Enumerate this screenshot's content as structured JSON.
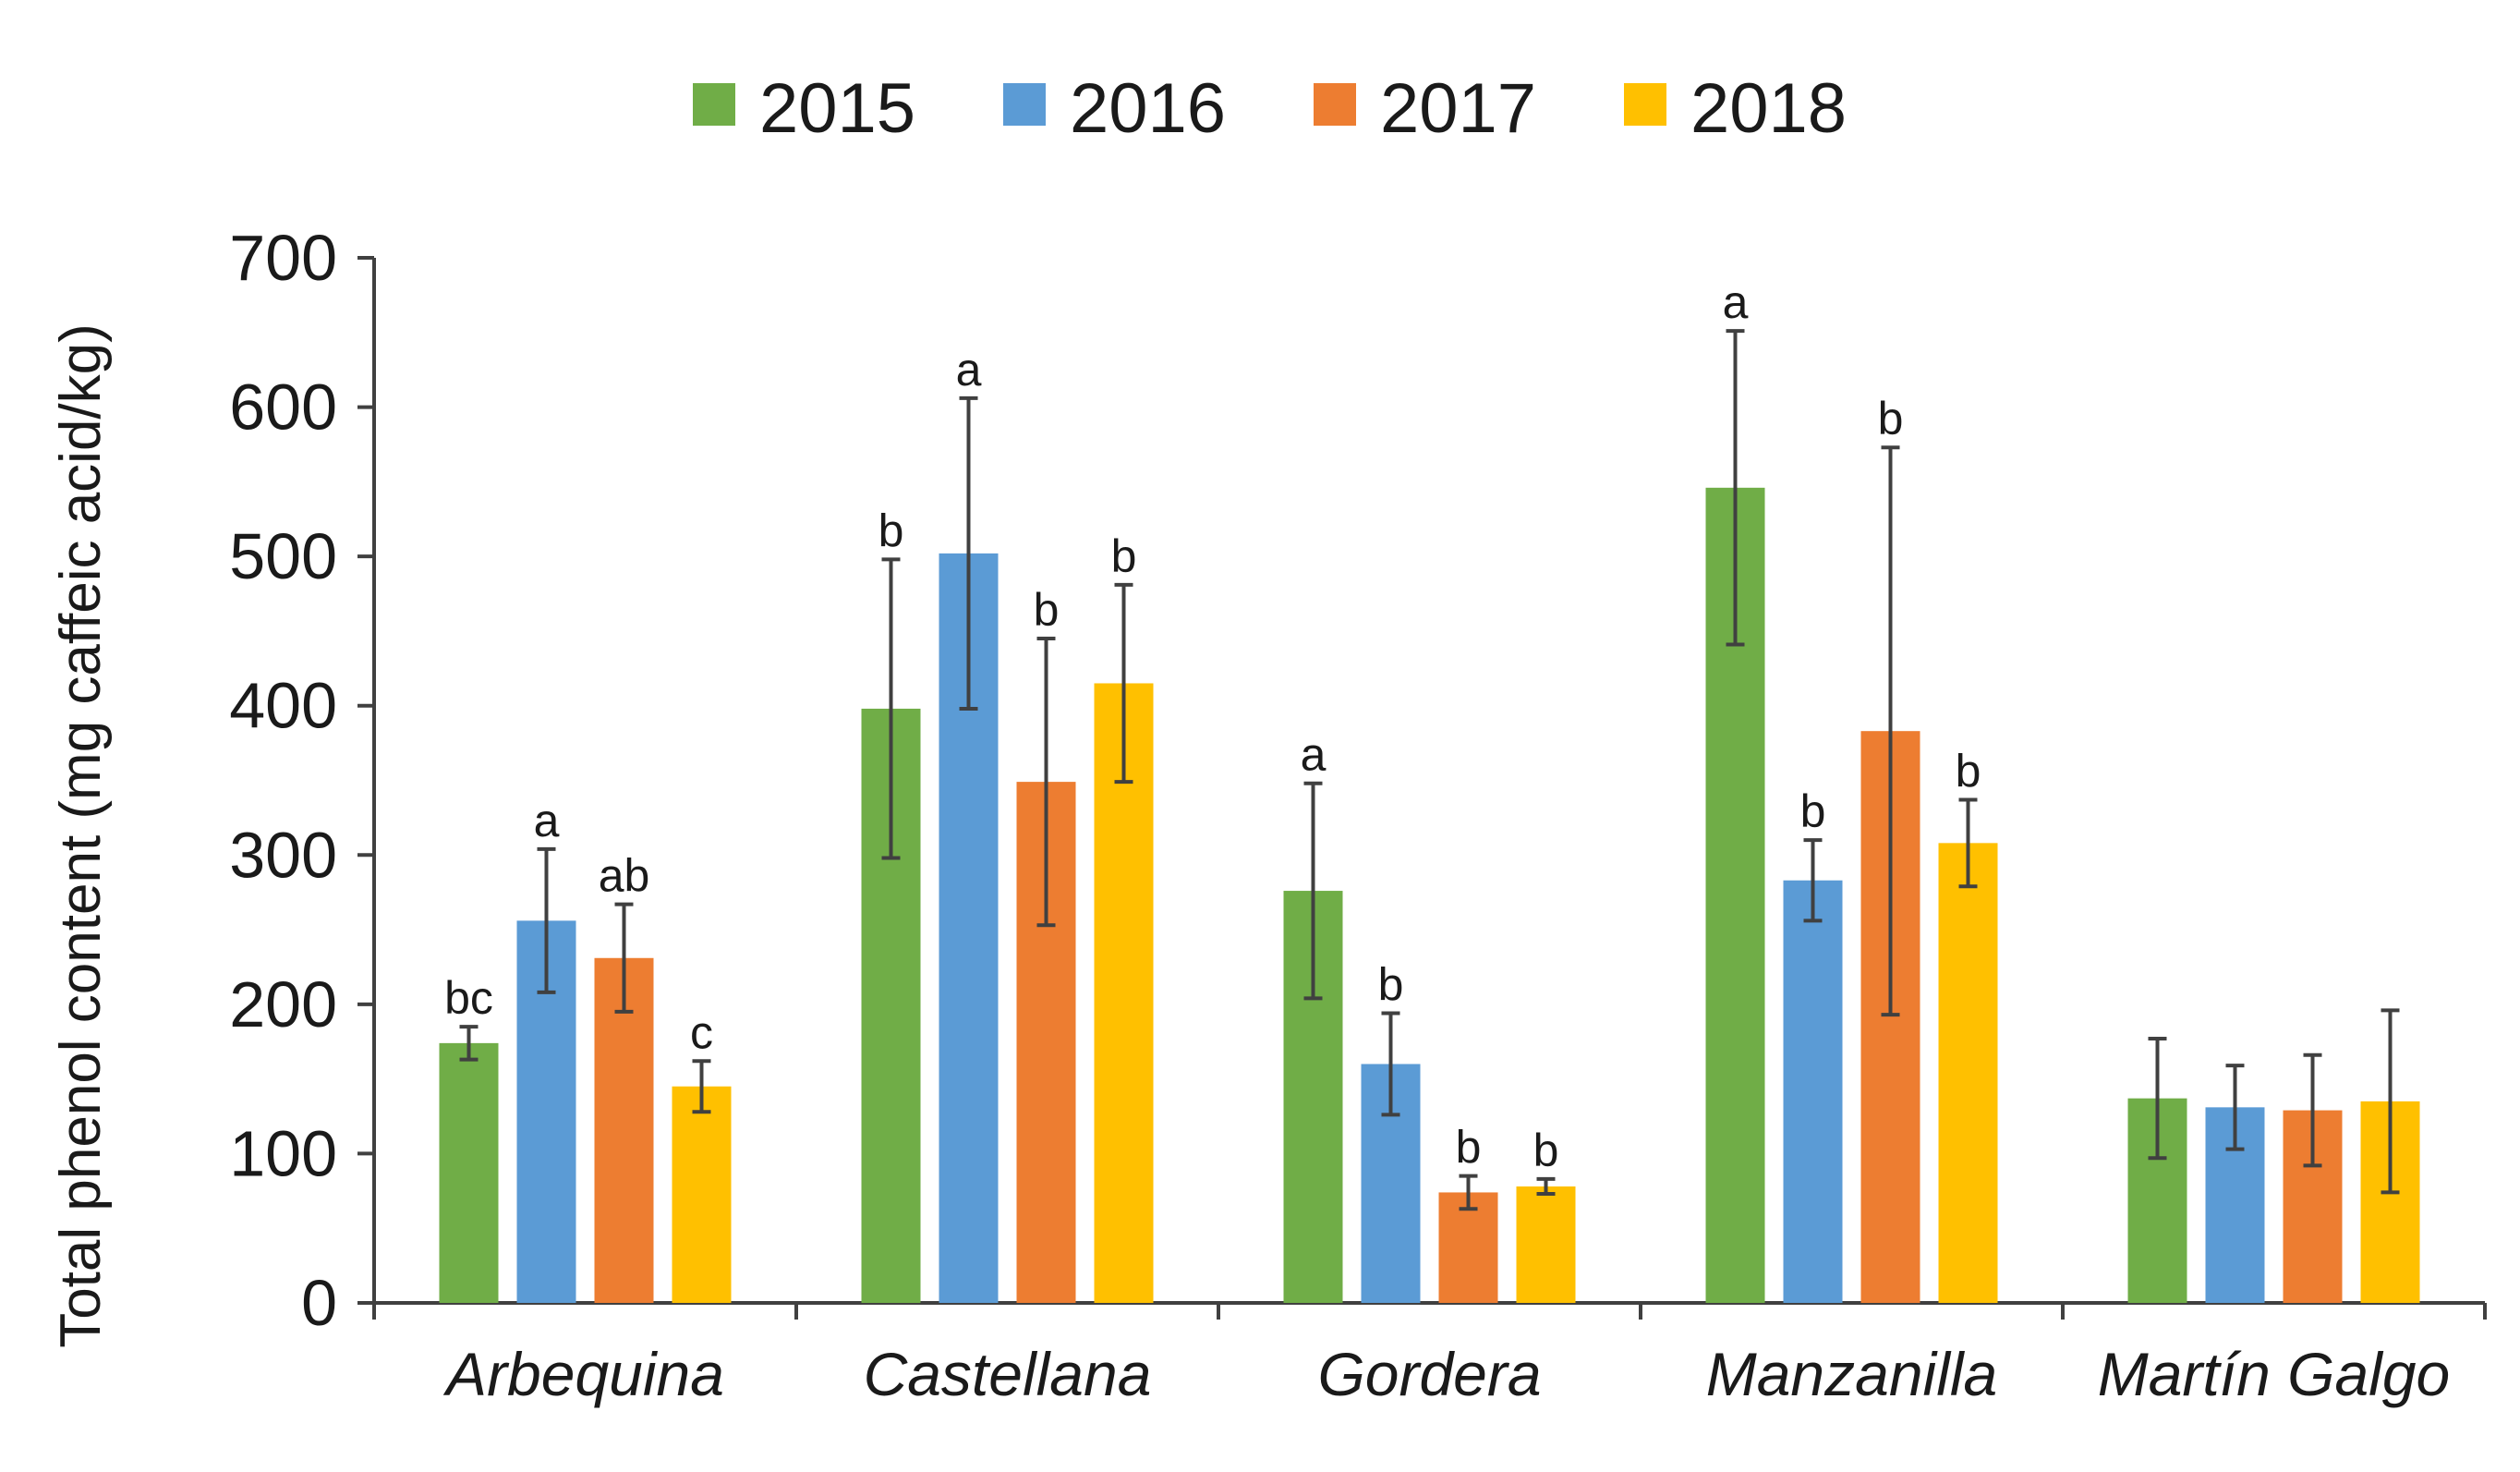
{
  "chart_data": {
    "type": "bar",
    "title": "",
    "xlabel": "",
    "ylabel": "Total phenol content (mg caffeic acid/kg)",
    "ylim": [
      0,
      700
    ],
    "yticks": [
      0,
      100,
      200,
      300,
      400,
      500,
      600,
      700
    ],
    "grid": false,
    "legend_position": "top",
    "categories": [
      "Arbequina",
      "Castellana",
      "Gordera",
      "Manzanilla",
      "Martín Galgo"
    ],
    "series": [
      {
        "name": "2015",
        "color": "#70ad47",
        "values": [
          174,
          398,
          276,
          546,
          137
        ],
        "errors": [
          11,
          100,
          72,
          105,
          40
        ],
        "labels": [
          "bc",
          "b",
          "a",
          "a",
          ""
        ]
      },
      {
        "name": "2016",
        "color": "#5b9bd5",
        "values": [
          256,
          502,
          160,
          283,
          131
        ],
        "errors": [
          48,
          104,
          34,
          27,
          28
        ],
        "labels": [
          "a",
          "a",
          "b",
          "b",
          ""
        ]
      },
      {
        "name": "2017",
        "color": "#ed7d31",
        "values": [
          231,
          349,
          74,
          383,
          129
        ],
        "errors": [
          36,
          96,
          11,
          190,
          37
        ],
        "labels": [
          "ab",
          "b",
          "b",
          "b",
          ""
        ]
      },
      {
        "name": "2018",
        "color": "#ffc000",
        "values": [
          145,
          415,
          78,
          308,
          135
        ],
        "errors": [
          17,
          66,
          5,
          29,
          61
        ],
        "labels": [
          "c",
          "b",
          "b",
          "b",
          ""
        ]
      }
    ]
  }
}
